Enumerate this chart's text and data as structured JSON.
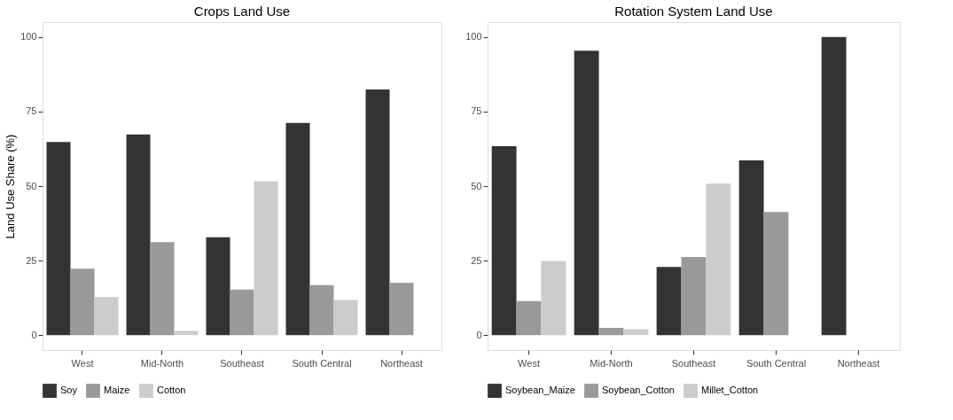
{
  "chart_data": [
    {
      "type": "bar",
      "title": "Crops Land Use",
      "ylabel": "Land Use Share (%)",
      "categories": [
        "West",
        "Mid-North",
        "Southeast",
        "South Central",
        "Northeast"
      ],
      "series": [
        {
          "name": "Soy",
          "color": "#333333",
          "values": [
            64.8,
            67.3,
            32.8,
            71.2,
            82.4
          ]
        },
        {
          "name": "Maize",
          "color": "#999999",
          "values": [
            22.3,
            31.2,
            15.3,
            16.8,
            17.5
          ]
        },
        {
          "name": "Cotton",
          "color": "#cccccc",
          "values": [
            12.8,
            1.4,
            51.6,
            11.8,
            null
          ]
        }
      ],
      "ylim": [
        -5,
        105
      ],
      "yticks": [
        0,
        25,
        50,
        75,
        100
      ],
      "grid": true,
      "legend": "bottom"
    },
    {
      "type": "bar",
      "title": "Rotation System Land Use",
      "categories": [
        "West",
        "Mid-North",
        "Southeast",
        "South Central",
        "Northeast"
      ],
      "series": [
        {
          "name": "Soybean_Maize",
          "color": "#333333",
          "values": [
            63.4,
            95.4,
            22.9,
            58.6,
            100
          ]
        },
        {
          "name": "Soybean_Cotton",
          "color": "#999999",
          "values": [
            11.4,
            2.4,
            26.2,
            41.3,
            null
          ]
        },
        {
          "name": "Millet_Cotton",
          "color": "#cccccc",
          "values": [
            24.9,
            2.0,
            50.8,
            null,
            null
          ]
        }
      ],
      "ylim": [
        -5,
        105
      ],
      "yticks": [
        0,
        25,
        50,
        75,
        100
      ],
      "grid": true,
      "legend": "bottom"
    }
  ]
}
